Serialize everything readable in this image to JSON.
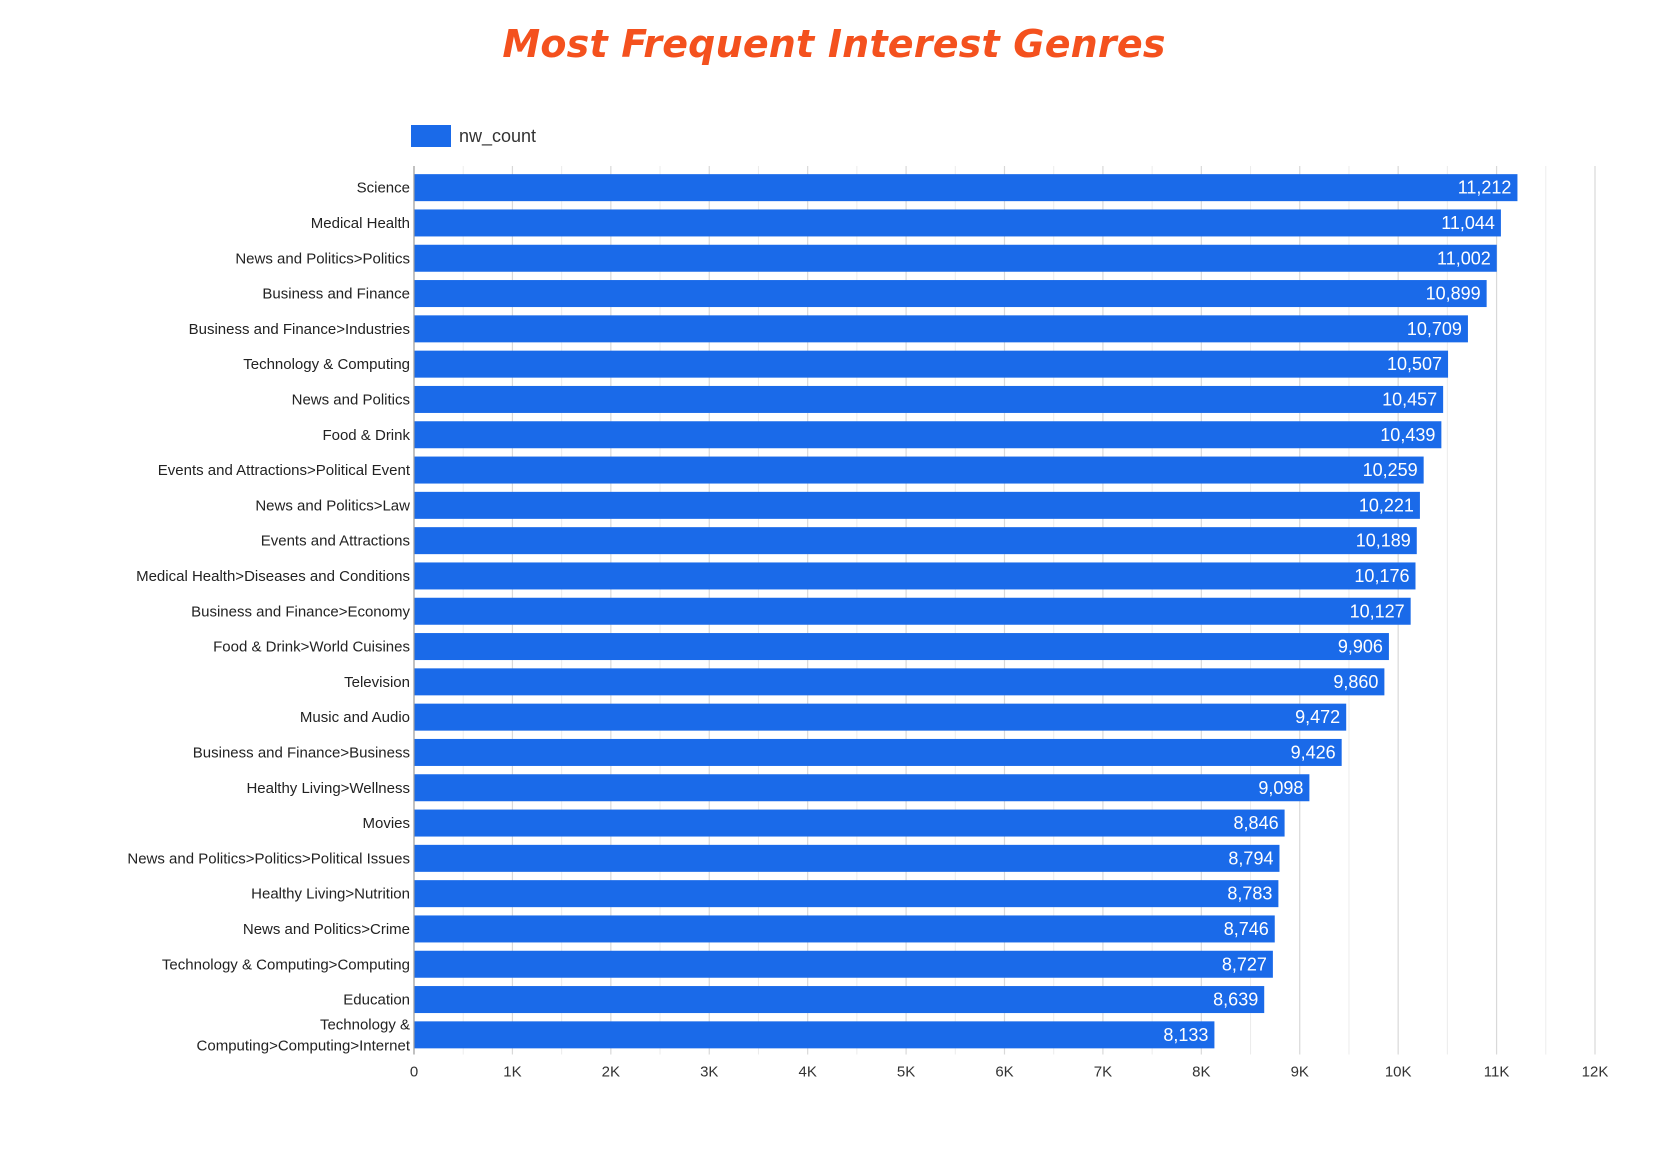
{
  "chart_data": {
    "type": "bar",
    "orientation": "horizontal",
    "title": "Most Frequent Interest Genres",
    "series": [
      {
        "name": "nw_count",
        "color": "#1a6ae9",
        "values": [
          11212,
          11044,
          11002,
          10899,
          10709,
          10507,
          10457,
          10439,
          10259,
          10221,
          10189,
          10176,
          10127,
          9906,
          9860,
          9472,
          9426,
          9098,
          8846,
          8794,
          8783,
          8746,
          8727,
          8639,
          8133
        ]
      }
    ],
    "categories": [
      "Science",
      "Medical Health",
      "News and Politics>Politics",
      "Business and Finance",
      "Business and Finance>Industries",
      "Technology & Computing",
      "News and Politics",
      "Food & Drink",
      "Events and Attractions>Political Event",
      "News and Politics>Law",
      "Events and Attractions",
      "Medical Health>Diseases and Conditions",
      "Business and Finance>Economy",
      "Food & Drink>World Cuisines",
      "Television",
      "Music and Audio",
      "Business and Finance>Business",
      "Healthy Living>Wellness",
      "Movies",
      "News and Politics>Politics>Political Issues",
      "Healthy Living>Nutrition",
      "News and Politics>Crime",
      "Technology & Computing>Computing",
      "Education",
      "Technology & Computing>Computing>Internet"
    ],
    "category_display_lines": {
      "24": [
        "Technology &",
        "Computing>Computing>Internet"
      ]
    },
    "data_labels": [
      "11,212",
      "11,044",
      "11,002",
      "10,899",
      "10,709",
      "10,507",
      "10,457",
      "10,439",
      "10,259",
      "10,221",
      "10,189",
      "10,176",
      "10,127",
      "9,906",
      "9,860",
      "9,472",
      "9,426",
      "9,098",
      "8,846",
      "8,794",
      "8,783",
      "8,746",
      "8,727",
      "8,639",
      "8,133"
    ],
    "xlim": [
      0,
      12000
    ],
    "x_ticks": [
      0,
      1000,
      2000,
      3000,
      4000,
      5000,
      6000,
      7000,
      8000,
      9000,
      10000,
      11000,
      12000
    ],
    "x_tick_labels": [
      "0",
      "1K",
      "2K",
      "3K",
      "4K",
      "5K",
      "6K",
      "7K",
      "8K",
      "9K",
      "10K",
      "11K",
      "12K"
    ],
    "grid": true,
    "legend_position": "top-left",
    "title_color": "#f4511e",
    "grid_color": "#d9d9d9"
  }
}
